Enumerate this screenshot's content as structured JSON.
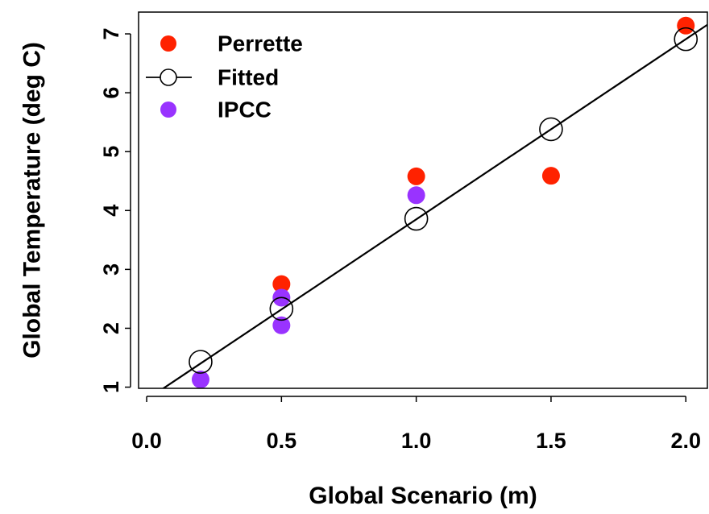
{
  "chart_data": {
    "type": "scatter",
    "title": "",
    "xlabel": "Global Scenario (m)",
    "ylabel": "Global Temperature (deg C)",
    "xlim": [
      -0.03,
      2.08
    ],
    "ylim": [
      0.98,
      7.37
    ],
    "x_ticks": [
      {
        "value": 0.0,
        "label": "0.0"
      },
      {
        "value": 0.5,
        "label": "0.5"
      },
      {
        "value": 1.0,
        "label": "1.0"
      },
      {
        "value": 1.5,
        "label": "1.5"
      },
      {
        "value": 2.0,
        "label": "2.0"
      }
    ],
    "y_ticks": [
      {
        "value": 1,
        "label": "1"
      },
      {
        "value": 2,
        "label": "2"
      },
      {
        "value": 3,
        "label": "3"
      },
      {
        "value": 4,
        "label": "4"
      },
      {
        "value": 5,
        "label": "5"
      },
      {
        "value": 6,
        "label": "6"
      },
      {
        "value": 7,
        "label": "7"
      }
    ],
    "grid": false,
    "legend_position": "top-left",
    "series": [
      {
        "name": "Perrette",
        "marker": "filled-circle",
        "color": "#ff2200",
        "points": [
          {
            "x": 0.5,
            "y": 2.75
          },
          {
            "x": 1.0,
            "y": 4.58
          },
          {
            "x": 1.5,
            "y": 4.59
          },
          {
            "x": 2.0,
            "y": 7.14
          }
        ]
      },
      {
        "name": "IPCC",
        "marker": "filled-circle",
        "color": "#9933ff",
        "points": [
          {
            "x": 0.2,
            "y": 1.13
          },
          {
            "x": 0.5,
            "y": 2.52
          },
          {
            "x": 0.5,
            "y": 2.05
          },
          {
            "x": 1.0,
            "y": 4.26
          }
        ]
      },
      {
        "name": "Fitted",
        "marker": "open-circle",
        "color": "#000000",
        "points": [
          {
            "x": 0.2,
            "y": 1.43
          },
          {
            "x": 0.5,
            "y": 2.33
          },
          {
            "x": 1.0,
            "y": 3.86
          },
          {
            "x": 1.5,
            "y": 5.38
          },
          {
            "x": 2.0,
            "y": 6.91
          }
        ],
        "line": {
          "slope": 3.06,
          "intercept": 0.79
        }
      }
    ],
    "legend": [
      {
        "label": "Perrette",
        "symbol": "filled-circle",
        "color": "#ff2200"
      },
      {
        "label": "Fitted",
        "symbol": "open-circle-with-line",
        "color": "#000000"
      },
      {
        "label": "IPCC",
        "symbol": "filled-circle",
        "color": "#9933ff"
      }
    ]
  }
}
